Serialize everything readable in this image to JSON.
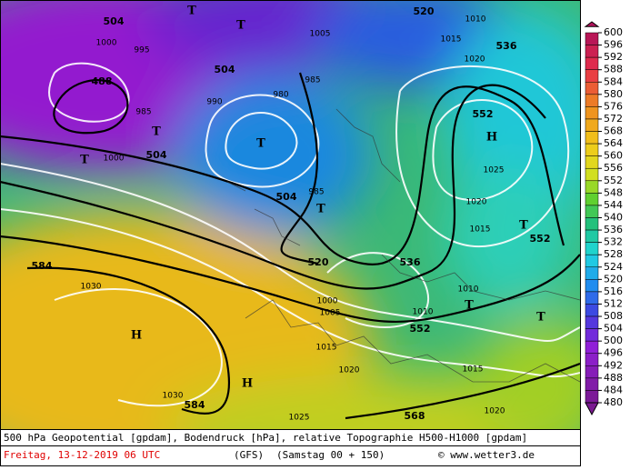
{
  "map": {
    "labels": [
      "504",
      "520",
      "536",
      "552",
      "552",
      "536",
      "520",
      "504",
      "504",
      "488",
      "504",
      "584",
      "584",
      "568",
      "552",
      "1000",
      "1000",
      "1005",
      "985",
      "990",
      "995",
      "985",
      "980",
      "985",
      "1010",
      "1015",
      "1020",
      "1025",
      "1030",
      "1030",
      "1020",
      "1015",
      "1010",
      "1005",
      "1000",
      "1020",
      "1015",
      "1025",
      "1020",
      "1015",
      "1010"
    ],
    "symbols": [
      "T",
      "T",
      "T",
      "T",
      "T",
      "H",
      "H",
      "H",
      "T",
      "T",
      "T",
      "T"
    ]
  },
  "colorbar": {
    "labels": [
      "600",
      "596",
      "592",
      "588",
      "584",
      "580",
      "576",
      "572",
      "568",
      "564",
      "560",
      "556",
      "552",
      "548",
      "544",
      "540",
      "536",
      "532",
      "528",
      "524",
      "520",
      "516",
      "512",
      "508",
      "504",
      "500",
      "496",
      "492",
      "488",
      "484",
      "480"
    ]
  },
  "footer": {
    "description": "500 hPa Geopotential [gpdam], Bodendruck [hPa], relative Topographie H500-H1000 [gpdam]",
    "date": "Freitag, 13-12-2019  06 UTC",
    "model": "(GFS)",
    "run": "(Samstag 00 + 150)",
    "source": "© www.wetter3.de"
  }
}
